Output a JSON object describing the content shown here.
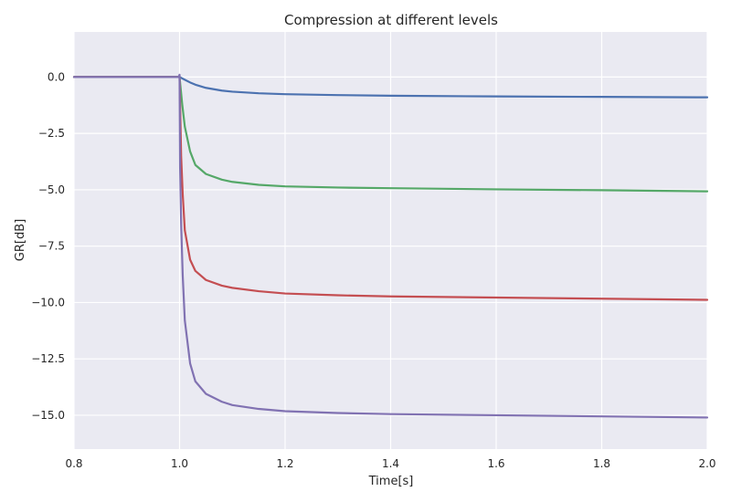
{
  "chart_data": {
    "type": "line",
    "title": "Compression at different levels",
    "xlabel": "Time[s]",
    "ylabel": "GR[dB]",
    "xlim": [
      0.8,
      2.0
    ],
    "ylim": [
      -16.5,
      2.0
    ],
    "xticks": [
      0.8,
      1.0,
      1.2,
      1.4,
      1.6,
      1.8,
      2.0
    ],
    "xtick_labels": [
      "0.8",
      "1.0",
      "1.2",
      "1.4",
      "1.6",
      "1.8",
      "2.0"
    ],
    "yticks": [
      0.0,
      -2.5,
      -5.0,
      -7.5,
      -10.0,
      -12.5,
      -15.0
    ],
    "ytick_labels": [
      "0.0",
      "−2.5",
      "−5.0",
      "−7.5",
      "−10.0",
      "−12.5",
      "−15.0"
    ],
    "grid": true,
    "background": "#eaeaf2",
    "series": [
      {
        "color": "#4c72b0",
        "x": [
          0.8,
          1.0,
          1.01,
          1.02,
          1.03,
          1.05,
          1.08,
          1.1,
          1.15,
          1.2,
          1.3,
          1.4,
          1.6,
          1.8,
          2.0
        ],
        "y": [
          0.0,
          0.0,
          -0.12,
          -0.24,
          -0.34,
          -0.48,
          -0.6,
          -0.65,
          -0.72,
          -0.76,
          -0.8,
          -0.83,
          -0.86,
          -0.88,
          -0.9
        ]
      },
      {
        "color": "#55a868",
        "x": [
          0.8,
          1.0,
          1.005,
          1.01,
          1.02,
          1.03,
          1.05,
          1.08,
          1.1,
          1.15,
          1.2,
          1.3,
          1.4,
          1.6,
          1.8,
          2.0
        ],
        "y": [
          0.0,
          0.0,
          -1.2,
          -2.2,
          -3.3,
          -3.9,
          -4.3,
          -4.55,
          -4.65,
          -4.78,
          -4.85,
          -4.9,
          -4.93,
          -4.98,
          -5.02,
          -5.07
        ]
      },
      {
        "color": "#c44e52",
        "x": [
          0.8,
          1.0,
          1.003,
          1.006,
          1.01,
          1.02,
          1.03,
          1.05,
          1.08,
          1.1,
          1.15,
          1.2,
          1.3,
          1.4,
          1.6,
          1.8,
          2.0
        ],
        "y": [
          0.0,
          0.0,
          -3.5,
          -5.2,
          -6.8,
          -8.1,
          -8.6,
          -9.0,
          -9.25,
          -9.35,
          -9.5,
          -9.6,
          -9.68,
          -9.73,
          -9.78,
          -9.83,
          -9.88
        ]
      },
      {
        "color": "#8172b2",
        "x": [
          0.8,
          0.998,
          1.0,
          1.001,
          1.003,
          1.006,
          1.01,
          1.02,
          1.03,
          1.05,
          1.08,
          1.1,
          1.15,
          1.2,
          1.3,
          1.4,
          1.6,
          1.8,
          2.0
        ],
        "y": [
          0.0,
          0.0,
          0.1,
          -4.0,
          -6.5,
          -8.8,
          -10.8,
          -12.7,
          -13.5,
          -14.05,
          -14.4,
          -14.55,
          -14.72,
          -14.82,
          -14.9,
          -14.95,
          -15.0,
          -15.05,
          -15.1
        ]
      }
    ]
  }
}
